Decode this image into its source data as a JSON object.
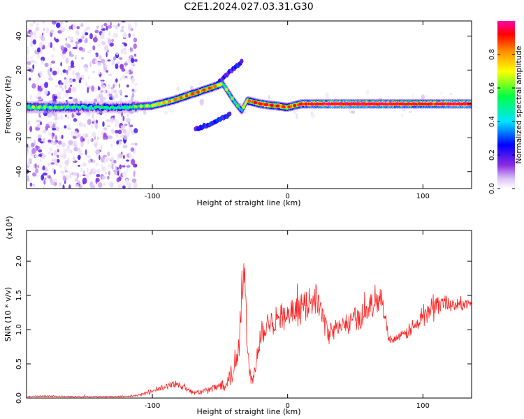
{
  "figure": {
    "title": "C2E1.2024.027.03.31.G30"
  },
  "chart_data": [
    {
      "type": "heatmap",
      "title": "C2E1.2024.027.03.31.G30",
      "xlabel": "Height of straight line (km)",
      "ylabel": "Frequency (Hz)",
      "xlim": [
        -193,
        136
      ],
      "ylim": [
        -50,
        49
      ],
      "x_ticks": [
        -100,
        0,
        100
      ],
      "x_tick_labels": [
        "-100",
        "0",
        "100"
      ],
      "y_ticks": [
        -40,
        -20,
        0,
        20,
        40
      ],
      "y_tick_labels": [
        "-40",
        "-20",
        "0",
        "20",
        "40"
      ],
      "colorbar": {
        "label": "Normalized spectral amplitude",
        "range": [
          0,
          1
        ],
        "ticks": [
          0.0,
          0.2,
          0.4,
          0.6,
          0.8
        ],
        "tick_labels": [
          "0.0",
          "0.2",
          "0.4",
          "0.6",
          "0.8"
        ],
        "colors": [
          "#ffffff",
          "#d9c2f5",
          "#8a2be2",
          "#0000ff",
          "#00e5ff",
          "#00ff44",
          "#ffff00",
          "#ff8c00",
          "#ff0000",
          "#ff00aa"
        ]
      },
      "ridge": [
        {
          "x": -193,
          "y": -2,
          "a": 0.55
        },
        {
          "x": -170,
          "y": -2,
          "a": 0.5
        },
        {
          "x": -150,
          "y": -2,
          "a": 0.45
        },
        {
          "x": -120,
          "y": -2,
          "a": 0.45
        },
        {
          "x": -100,
          "y": -1,
          "a": 0.6
        },
        {
          "x": -85,
          "y": 2,
          "a": 0.7
        },
        {
          "x": -70,
          "y": 6,
          "a": 0.75
        },
        {
          "x": -55,
          "y": 10,
          "a": 0.75
        },
        {
          "x": -48,
          "y": 12,
          "a": 0.55
        },
        {
          "x": -40,
          "y": 2,
          "a": 0.5
        },
        {
          "x": -34,
          "y": -4,
          "a": 0.45
        },
        {
          "x": -30,
          "y": 2,
          "a": 0.7
        },
        {
          "x": -20,
          "y": 0,
          "a": 0.85
        },
        {
          "x": 0,
          "y": -2,
          "a": 0.75
        },
        {
          "x": 10,
          "y": 0,
          "a": 0.85
        },
        {
          "x": 50,
          "y": 0,
          "a": 0.95
        },
        {
          "x": 100,
          "y": 0,
          "a": 0.85
        },
        {
          "x": 136,
          "y": 0,
          "a": 0.95
        }
      ],
      "branches": [
        {
          "points": [
            {
              "x": -52,
              "y": 12
            },
            {
              "x": -44,
              "y": 18
            },
            {
              "x": -34,
              "y": 25
            }
          ],
          "a": 0.3
        },
        {
          "points": [
            {
              "x": -68,
              "y": -15
            },
            {
              "x": -58,
              "y": -12
            },
            {
              "x": -50,
              "y": -9
            },
            {
              "x": -42,
              "y": -6
            }
          ],
          "a": 0.3
        }
      ]
    },
    {
      "type": "line",
      "xlabel": "Height of straight line (km)",
      "ylabel": "SNR (10 * v/v)",
      "multiplier": "(x10⁴)",
      "xlim": [
        -193,
        136
      ],
      "ylim": [
        0,
        2.45
      ],
      "x_ticks": [
        -100,
        0,
        100
      ],
      "x_tick_labels": [
        "-100",
        "0",
        "100"
      ],
      "y_ticks": [
        0,
        0.5,
        1.0,
        1.5,
        2.0
      ],
      "y_tick_labels": [
        "0.0",
        "0.5",
        "1.0",
        "1.5",
        "2.0"
      ],
      "series": [
        {
          "color": "#ff2222",
          "x": [
            -193,
            -180,
            -160,
            -140,
            -120,
            -110,
            -100,
            -90,
            -82,
            -76,
            -70,
            -60,
            -50,
            -45,
            -40,
            -38,
            -35,
            -33,
            -31,
            -30,
            -28,
            -26,
            -24,
            -22,
            -20,
            -15,
            -10,
            -5,
            0,
            5,
            10,
            15,
            20,
            25,
            30,
            35,
            40,
            45,
            50,
            55,
            60,
            65,
            68,
            70,
            72,
            75,
            80,
            85,
            90,
            95,
            100,
            105,
            110,
            115,
            120,
            125,
            130,
            136
          ],
          "y": [
            0.02,
            0.03,
            0.02,
            0.02,
            0.02,
            0.04,
            0.1,
            0.16,
            0.22,
            0.15,
            0.08,
            0.1,
            0.18,
            0.25,
            0.4,
            0.6,
            1.1,
            1.9,
            1.5,
            0.7,
            0.35,
            0.3,
            0.4,
            0.75,
            0.95,
            1.1,
            1.15,
            1.2,
            1.2,
            1.25,
            1.3,
            1.4,
            1.5,
            1.25,
            0.95,
            1.0,
            1.05,
            1.1,
            1.15,
            1.2,
            1.3,
            1.45,
            1.5,
            1.4,
            1.2,
            0.85,
            0.88,
            0.9,
            1.0,
            1.05,
            1.2,
            1.3,
            1.35,
            1.4,
            1.38,
            1.36,
            1.35,
            1.4
          ],
          "noise": [
            0.01,
            0.01,
            0.01,
            0.01,
            0.01,
            0.02,
            0.04,
            0.05,
            0.06,
            0.05,
            0.03,
            0.05,
            0.08,
            0.12,
            0.2,
            0.3,
            0.55,
            0.6,
            0.5,
            0.3,
            0.12,
            0.1,
            0.12,
            0.2,
            0.25,
            0.22,
            0.22,
            0.2,
            0.2,
            0.2,
            0.22,
            0.22,
            0.24,
            0.2,
            0.15,
            0.16,
            0.16,
            0.17,
            0.18,
            0.2,
            0.2,
            0.2,
            0.22,
            0.18,
            0.14,
            0.06,
            0.06,
            0.08,
            0.12,
            0.14,
            0.2,
            0.22,
            0.2,
            0.14,
            0.1,
            0.1,
            0.1,
            0.08
          ]
        }
      ]
    }
  ]
}
